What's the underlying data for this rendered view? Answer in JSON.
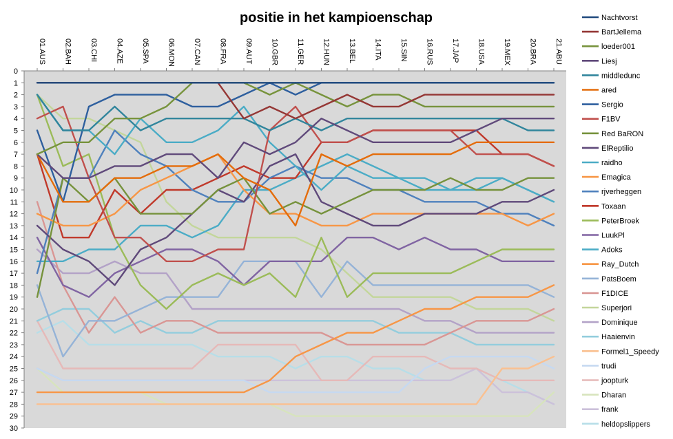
{
  "chart_data": {
    "type": "line",
    "title": "positie in het kampioenschap",
    "xlabel": "",
    "ylabel": "",
    "categories": [
      "01.AUS",
      "02.BAH",
      "03.CHI",
      "04.AZE",
      "05.SPA",
      "06.MON",
      "07.CAN",
      "08.FRA",
      "09.AUT",
      "10.GBR",
      "11.GER",
      "12.HUN",
      "13.BEL",
      "14.ITA",
      "15.SIN",
      "16.RUS",
      "17.JAP",
      "18.USA",
      "19.MEX",
      "20.BRA",
      "21.ABU"
    ],
    "yticks": [
      "0",
      "1",
      "2",
      "3",
      "4",
      "5",
      "6",
      "7",
      "8",
      "9",
      "10",
      "11",
      "12",
      "13",
      "14",
      "15",
      "16",
      "17",
      "18",
      "19",
      "20",
      "21",
      "22",
      "23",
      "24",
      "25",
      "26",
      "27",
      "28",
      "29",
      "30"
    ],
    "ylim": [
      0,
      30
    ],
    "y_inverted": true,
    "x_axis_position": "top",
    "grid": false,
    "plot_background": "#d9d9d9",
    "legend_position": "right",
    "series": [
      {
        "name": "Nachtvorst",
        "color": "#1f497d",
        "values": [
          1,
          1,
          1,
          1,
          1,
          1,
          1,
          1,
          1,
          1,
          1,
          1,
          1,
          1,
          1,
          1,
          1,
          1,
          1,
          1,
          1
        ]
      },
      {
        "name": "BartJellema",
        "color": "#953735",
        "values": [
          1,
          1,
          1,
          1,
          1,
          1,
          1,
          1,
          4,
          3,
          4,
          3,
          2,
          3,
          3,
          2,
          2,
          2,
          2,
          2,
          2
        ]
      },
      {
        "name": "loeder001",
        "color": "#77933c",
        "values": [
          7,
          6,
          6,
          4,
          4,
          3,
          1,
          1,
          1,
          2,
          1,
          2,
          3,
          2,
          2,
          3,
          3,
          3,
          3,
          3,
          3
        ]
      },
      {
        "name": "Liesj",
        "color": "#604a7b",
        "values": [
          7,
          9,
          9,
          8,
          8,
          7,
          7,
          9,
          6,
          7,
          6,
          4,
          5,
          6,
          6,
          6,
          6,
          5,
          4,
          4,
          4
        ]
      },
      {
        "name": "middledunc",
        "color": "#31859c",
        "values": [
          2,
          5,
          5,
          3,
          5,
          4,
          4,
          4,
          4,
          5,
          4,
          5,
          4,
          4,
          4,
          4,
          4,
          4,
          4,
          5,
          5
        ]
      },
      {
        "name": "ared",
        "color": "#e46c0a",
        "values": [
          7,
          11,
          11,
          9,
          9,
          8,
          8,
          7,
          9,
          10,
          13,
          7,
          8,
          7,
          7,
          7,
          7,
          6,
          6,
          6,
          6
        ]
      },
      {
        "name": "Sergio",
        "color": "#2e5f9e",
        "values": [
          5,
          11,
          3,
          2,
          2,
          2,
          3,
          3,
          2,
          1,
          2,
          1,
          1,
          1,
          1,
          1,
          1,
          1,
          1,
          1,
          1
        ]
      },
      {
        "name": "F1BV",
        "color": "#c0504d",
        "values": [
          4,
          3,
          9,
          14,
          14,
          16,
          16,
          15,
          15,
          5,
          3,
          6,
          6,
          5,
          5,
          5,
          5,
          7,
          7,
          7,
          8
        ]
      },
      {
        "name": "Red BaRON",
        "color": "#76923c",
        "values": [
          19,
          9,
          11,
          9,
          12,
          12,
          12,
          10,
          9,
          12,
          11,
          12,
          11,
          10,
          10,
          10,
          9,
          10,
          10,
          9,
          9
        ]
      },
      {
        "name": "ElReptilio",
        "color": "#5f497a",
        "values": [
          13,
          15,
          16,
          18,
          15,
          14,
          12,
          10,
          11,
          8,
          7,
          11,
          12,
          13,
          13,
          12,
          12,
          12,
          11,
          11,
          10
        ]
      },
      {
        "name": "raidho",
        "color": "#4bacc6",
        "values": [
          2,
          5,
          5,
          7,
          4,
          6,
          6,
          5,
          3,
          6,
          8,
          10,
          8,
          9,
          9,
          9,
          10,
          9,
          9,
          10,
          11
        ]
      },
      {
        "name": "Emagica",
        "color": "#f79646",
        "values": [
          12,
          13,
          13,
          12,
          10,
          9,
          8,
          7,
          10,
          12,
          12,
          13,
          13,
          12,
          12,
          12,
          12,
          12,
          12,
          13,
          12
        ]
      },
      {
        "name": "rjverheggen",
        "color": "#4f81bd",
        "values": [
          17,
          9,
          9,
          5,
          7,
          8,
          10,
          11,
          11,
          9,
          8,
          9,
          9,
          10,
          10,
          11,
          11,
          11,
          12,
          12,
          13
        ]
      },
      {
        "name": "Toxaan",
        "color": "#c0392b",
        "values": [
          7,
          14,
          14,
          10,
          12,
          10,
          10,
          9,
          8,
          9,
          9,
          6,
          6,
          5,
          5,
          5,
          5,
          5,
          7,
          7,
          8
        ]
      },
      {
        "name": "PeterBroek",
        "color": "#9bbb59",
        "values": [
          2,
          8,
          7,
          14,
          18,
          20,
          18,
          17,
          18,
          17,
          19,
          14,
          19,
          17,
          17,
          17,
          17,
          16,
          15,
          15,
          15
        ]
      },
      {
        "name": "LuukPl",
        "color": "#8064a2",
        "values": [
          14,
          18,
          19,
          17,
          16,
          15,
          15,
          16,
          18,
          16,
          16,
          16,
          14,
          14,
          15,
          14,
          15,
          15,
          16,
          16,
          16
        ]
      },
      {
        "name": "Adoks",
        "color": "#4bacc6",
        "values": [
          16,
          16,
          15,
          15,
          13,
          13,
          14,
          13,
          10,
          10,
          9,
          8,
          7,
          8,
          9,
          10,
          10,
          10,
          9,
          10,
          11
        ]
      },
      {
        "name": "Ray_Dutch",
        "color": "#f79646",
        "values": [
          27,
          27,
          27,
          27,
          27,
          27,
          27,
          27,
          27,
          26,
          24,
          23,
          22,
          22,
          21,
          20,
          20,
          19,
          19,
          19,
          18
        ]
      },
      {
        "name": "PatsBoem",
        "color": "#95b3d7",
        "values": [
          18,
          24,
          21,
          21,
          20,
          19,
          19,
          19,
          16,
          16,
          16,
          19,
          16,
          18,
          18,
          18,
          18,
          18,
          18,
          18,
          19
        ]
      },
      {
        "name": "F1DICE",
        "color": "#d99694",
        "values": [
          11,
          18,
          22,
          19,
          22,
          21,
          21,
          22,
          22,
          22,
          22,
          22,
          23,
          23,
          23,
          23,
          22,
          21,
          21,
          21,
          20
        ]
      },
      {
        "name": "Superjori",
        "color": "#c3d69b",
        "values": [
          2,
          4,
          4,
          5,
          6,
          11,
          13,
          14,
          14,
          14,
          14,
          15,
          17,
          19,
          19,
          19,
          19,
          20,
          20,
          20,
          21
        ]
      },
      {
        "name": "Dominique",
        "color": "#b3a2c7",
        "values": [
          15,
          17,
          17,
          16,
          17,
          17,
          20,
          20,
          20,
          20,
          20,
          20,
          20,
          20,
          20,
          21,
          21,
          22,
          22,
          22,
          22
        ]
      },
      {
        "name": "Haaienvin",
        "color": "#93cddd",
        "values": [
          21,
          20,
          20,
          22,
          21,
          22,
          22,
          21,
          21,
          21,
          21,
          21,
          21,
          21,
          22,
          22,
          22,
          23,
          23,
          23,
          23
        ]
      },
      {
        "name": "Formel1_Speedy",
        "color": "#fac090",
        "values": [
          28,
          28,
          28,
          28,
          28,
          28,
          28,
          28,
          28,
          28,
          28,
          28,
          28,
          28,
          28,
          28,
          28,
          28,
          25,
          25,
          24
        ]
      },
      {
        "name": "trudi",
        "color": "#c6d9f1",
        "values": [
          25,
          26,
          26,
          26,
          26,
          26,
          26,
          26,
          26,
          27,
          27,
          27,
          27,
          27,
          27,
          25,
          24,
          24,
          24,
          24,
          25
        ]
      },
      {
        "name": "joopturk",
        "color": "#e6b9b8",
        "values": [
          21,
          25,
          25,
          25,
          25,
          25,
          25,
          23,
          23,
          23,
          23,
          26,
          26,
          24,
          24,
          24,
          25,
          25,
          26,
          26,
          26
        ]
      },
      {
        "name": "Dharan",
        "color": "#d7e4bd",
        "values": [
          25,
          27,
          27,
          27,
          27,
          28,
          28,
          28,
          28,
          28,
          29,
          29,
          29,
          29,
          29,
          29,
          29,
          29,
          29,
          29,
          27
        ]
      },
      {
        "name": "frank",
        "color": "#ccc1da",
        "values": [
          25,
          26,
          26,
          26,
          26,
          26,
          26,
          26,
          26,
          26,
          26,
          26,
          26,
          26,
          26,
          26,
          26,
          25,
          27,
          27,
          28
        ]
      },
      {
        "name": "heldopslippers",
        "color": "#b7dee8",
        "values": [
          22,
          21,
          23,
          23,
          23,
          23,
          23,
          24,
          24,
          24,
          25,
          24,
          24,
          25,
          25,
          26,
          26,
          25,
          26,
          27,
          28
        ]
      }
    ]
  }
}
